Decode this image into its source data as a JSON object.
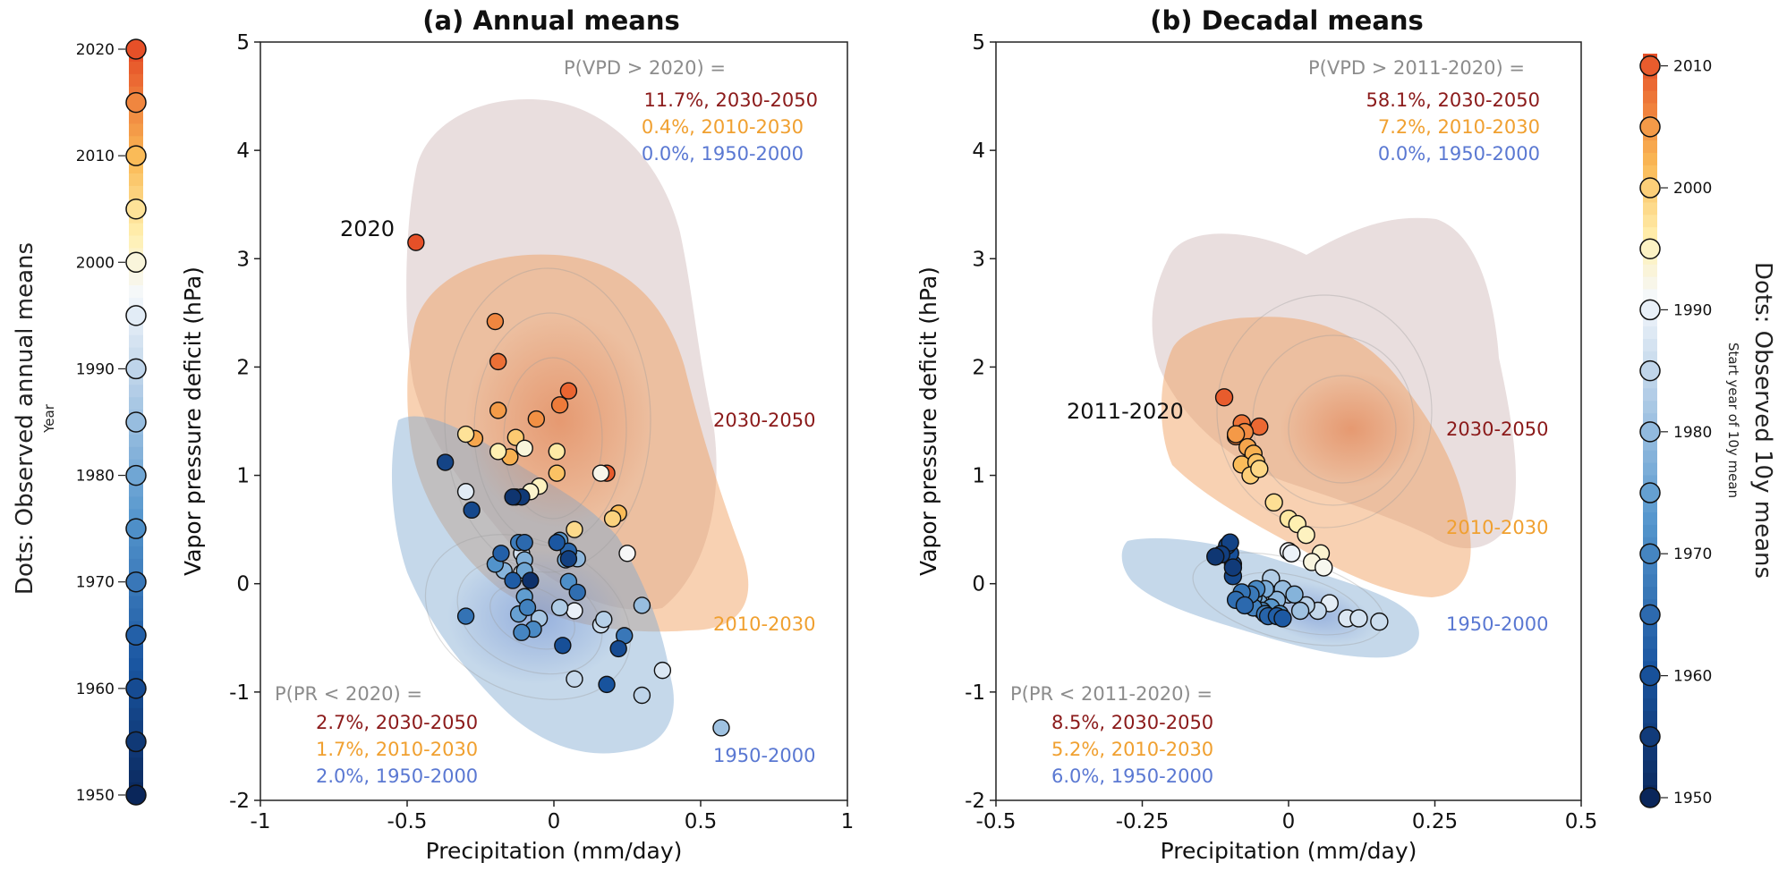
{
  "figure": {
    "left_colorbar": {
      "title": "Dots: Observed annual means",
      "subtitle": "Year",
      "ticks": [
        "1950",
        "1960",
        "1970",
        "1980",
        "1990",
        "2000",
        "2010",
        "2020"
      ]
    },
    "right_colorbar": {
      "title": "Dots: Observed 10y means",
      "subtitle": "Start year of 10y mean",
      "ticks": [
        "1950",
        "1960",
        "1970",
        "1980",
        "1990",
        "2000",
        "2010"
      ]
    }
  },
  "colors": {
    "period_2030_2050": "#8b1a1a",
    "period_2010_2030": "#f0a030",
    "period_1950_2000": "#5a78d2",
    "prob_header": "#8c8c8c",
    "kde_2030_2050": "#b89090",
    "kde_2010_2030": "#f2a860",
    "kde_1950_2000": "#7fa8d0"
  },
  "chart_data": [
    {
      "type": "scatter",
      "title": "(a) Annual means",
      "xlabel": "Precipitation (mm/day)",
      "ylabel": "Vapor pressure deficit (hPa)",
      "xlim": [
        -1,
        1
      ],
      "ylim": [
        -2,
        5
      ],
      "xticks": [
        "-1",
        "-0.5",
        "0",
        "0.5",
        "1"
      ],
      "yticks": [
        "-2",
        "-1",
        "0",
        "1",
        "2",
        "3",
        "4",
        "5"
      ],
      "highlight_label": "2020",
      "prob_vpd": {
        "header": "P(VPD > 2020) =",
        "lines": [
          "11.7%, 2030-2050",
          "0.4%, 2010-2030",
          "0.0%, 1950-2000"
        ]
      },
      "prob_pr": {
        "header": "P(PR < 2020) =",
        "lines": [
          "2.7%, 2030-2050",
          "1.7%, 2010-2030",
          "2.0%, 1950-2000"
        ]
      },
      "region_labels": [
        "2030-2050",
        "2010-2030",
        "1950-2000"
      ],
      "points": [
        {
          "x": -0.47,
          "y": 3.15,
          "year": 2020
        },
        {
          "x": 0.18,
          "y": 1.02,
          "year": 2019
        },
        {
          "x": 0.05,
          "y": 1.78,
          "year": 2018
        },
        {
          "x": -0.19,
          "y": 2.05,
          "year": 2017
        },
        {
          "x": 0.02,
          "y": 1.65,
          "year": 2016
        },
        {
          "x": -0.2,
          "y": 2.42,
          "year": 2015
        },
        {
          "x": -0.06,
          "y": 1.52,
          "year": 2014
        },
        {
          "x": -0.19,
          "y": 1.6,
          "year": 2013
        },
        {
          "x": -0.27,
          "y": 1.34,
          "year": 2012
        },
        {
          "x": -0.15,
          "y": 1.17,
          "year": 2011
        },
        {
          "x": 0.22,
          "y": 0.65,
          "year": 2010
        },
        {
          "x": 0.01,
          "y": 1.02,
          "year": 2009
        },
        {
          "x": -0.13,
          "y": 1.35,
          "year": 2008
        },
        {
          "x": 0.2,
          "y": 0.6,
          "year": 2007
        },
        {
          "x": 0.07,
          "y": 0.5,
          "year": 2006
        },
        {
          "x": -0.3,
          "y": 1.38,
          "year": 2005
        },
        {
          "x": 0.01,
          "y": 1.22,
          "year": 2004
        },
        {
          "x": -0.19,
          "y": 1.22,
          "year": 2003
        },
        {
          "x": -0.05,
          "y": 0.9,
          "year": 2002
        },
        {
          "x": -0.08,
          "y": 0.85,
          "year": 2001
        },
        {
          "x": -0.1,
          "y": 1.25,
          "year": 2000
        },
        {
          "x": 0.16,
          "y": 1.02,
          "year": 1999
        },
        {
          "x": 0.25,
          "y": 0.28,
          "year": 1998
        },
        {
          "x": -0.11,
          "y": 0.1,
          "year": 1997
        },
        {
          "x": 0.07,
          "y": -0.25,
          "year": 1996
        },
        {
          "x": -0.3,
          "y": 0.85,
          "year": 1995
        },
        {
          "x": 0.37,
          "y": -0.8,
          "year": 1994
        },
        {
          "x": -0.11,
          "y": 0.28,
          "year": 1993
        },
        {
          "x": 0.16,
          "y": -0.38,
          "year": 1992
        },
        {
          "x": 0.07,
          "y": -0.88,
          "year": 1991
        },
        {
          "x": 0.3,
          "y": -1.03,
          "year": 1990
        },
        {
          "x": 0.17,
          "y": -0.33,
          "year": 1989
        },
        {
          "x": 0.02,
          "y": -0.22,
          "year": 1988
        },
        {
          "x": -0.05,
          "y": -0.32,
          "year": 1987
        },
        {
          "x": 0.57,
          "y": -1.33,
          "year": 1986
        },
        {
          "x": 0.3,
          "y": -0.2,
          "year": 1985
        },
        {
          "x": 0.08,
          "y": 0.23,
          "year": 1984
        },
        {
          "x": -0.17,
          "y": 0.12,
          "year": 1983
        },
        {
          "x": -0.1,
          "y": 0.22,
          "year": 1982
        },
        {
          "x": 0.04,
          "y": 0.22,
          "year": 1981
        },
        {
          "x": -0.1,
          "y": 0.12,
          "year": 1980
        },
        {
          "x": -0.12,
          "y": -0.28,
          "year": 1979
        },
        {
          "x": -0.1,
          "y": -0.12,
          "year": 1978
        },
        {
          "x": 0.02,
          "y": 0.4,
          "year": 1977
        },
        {
          "x": -0.2,
          "y": 0.18,
          "year": 1976
        },
        {
          "x": 0.05,
          "y": 0.02,
          "year": 1975
        },
        {
          "x": -0.07,
          "y": -0.42,
          "year": 1974
        },
        {
          "x": -0.11,
          "y": -0.45,
          "year": 1973
        },
        {
          "x": -0.09,
          "y": -0.22,
          "year": 1972
        },
        {
          "x": -0.12,
          "y": 0.38,
          "year": 1971
        },
        {
          "x": 0.24,
          "y": -0.48,
          "year": 1970
        },
        {
          "x": -0.3,
          "y": -0.3,
          "year": 1969
        },
        {
          "x": 0.08,
          "y": -0.08,
          "year": 1968
        },
        {
          "x": -0.1,
          "y": 0.38,
          "year": 1967
        },
        {
          "x": 0.05,
          "y": 0.3,
          "year": 1966
        },
        {
          "x": -0.18,
          "y": 0.28,
          "year": 1965
        },
        {
          "x": -0.14,
          "y": 0.03,
          "year": 1964
        },
        {
          "x": 0.01,
          "y": 0.38,
          "year": 1963
        },
        {
          "x": 0.18,
          "y": -0.93,
          "year": 1962
        },
        {
          "x": 0.03,
          "y": -0.57,
          "year": 1961
        },
        {
          "x": 0.22,
          "y": -0.6,
          "year": 1960
        },
        {
          "x": -0.28,
          "y": 0.68,
          "year": 1959
        },
        {
          "x": -0.37,
          "y": 1.12,
          "year": 1958
        },
        {
          "x": 0.05,
          "y": 0.23,
          "year": 1957
        },
        {
          "x": -0.13,
          "y": 0.8,
          "year": 1956
        },
        {
          "x": -0.11,
          "y": 0.8,
          "year": 1955
        },
        {
          "x": -0.14,
          "y": 0.8,
          "year": 1954
        },
        {
          "x": -0.08,
          "y": 0.03,
          "year": 1953
        }
      ]
    },
    {
      "type": "scatter",
      "title": "(b) Decadal means",
      "xlabel": "Precipitation (mm/day)",
      "ylabel": "Vapor pressure deficit (hPa)",
      "xlim": [
        -0.5,
        0.5
      ],
      "ylim": [
        -2,
        5
      ],
      "xticks": [
        "-0.5",
        "-0.25",
        "0",
        "0.25",
        "0.5"
      ],
      "yticks": [
        "-2",
        "-1",
        "0",
        "1",
        "2",
        "3",
        "4",
        "5"
      ],
      "highlight_label": "2011-2020",
      "prob_vpd": {
        "header": "P(VPD > 2011-2020) =",
        "lines": [
          "58.1%, 2030-2050",
          "7.2%, 2010-2030",
          "0.0%, 1950-2000"
        ]
      },
      "prob_pr": {
        "header": "P(PR < 2011-2020) =",
        "lines": [
          "8.5%, 2030-2050",
          "5.2%, 2010-2030",
          "6.0%, 1950-2000"
        ]
      },
      "region_labels": [
        "2030-2050",
        "2010-2030",
        "1950-2000"
      ],
      "points": [
        {
          "x": -0.11,
          "y": 1.72,
          "year": 2011
        },
        {
          "x": -0.05,
          "y": 1.45,
          "year": 2010
        },
        {
          "x": -0.08,
          "y": 1.48,
          "year": 2009
        },
        {
          "x": -0.09,
          "y": 1.36,
          "year": 2008
        },
        {
          "x": -0.075,
          "y": 1.4,
          "year": 2007
        },
        {
          "x": -0.09,
          "y": 1.38,
          "year": 2006
        },
        {
          "x": -0.07,
          "y": 1.26,
          "year": 2005
        },
        {
          "x": -0.06,
          "y": 1.2,
          "year": 2004
        },
        {
          "x": -0.08,
          "y": 1.1,
          "year": 2003
        },
        {
          "x": -0.055,
          "y": 1.12,
          "year": 2002
        },
        {
          "x": -0.065,
          "y": 1.0,
          "year": 2001
        },
        {
          "x": -0.05,
          "y": 1.06,
          "year": 2000
        },
        {
          "x": -0.025,
          "y": 0.75,
          "year": 1999
        },
        {
          "x": 0.0,
          "y": 0.6,
          "year": 1998
        },
        {
          "x": 0.015,
          "y": 0.55,
          "year": 1997
        },
        {
          "x": 0.03,
          "y": 0.45,
          "year": 1996
        },
        {
          "x": 0.055,
          "y": 0.28,
          "year": 1995
        },
        {
          "x": 0.04,
          "y": 0.2,
          "year": 1994
        },
        {
          "x": 0.06,
          "y": 0.15,
          "year": 1993
        },
        {
          "x": 0.0,
          "y": 0.3,
          "year": 1992
        },
        {
          "x": 0.005,
          "y": 0.28,
          "year": 1991
        },
        {
          "x": 0.07,
          "y": -0.18,
          "year": 1990
        },
        {
          "x": 0.1,
          "y": -0.32,
          "year": 1989
        },
        {
          "x": 0.12,
          "y": -0.32,
          "year": 1988
        },
        {
          "x": 0.155,
          "y": -0.35,
          "year": 1987
        },
        {
          "x": 0.05,
          "y": -0.25,
          "year": 1986
        },
        {
          "x": 0.03,
          "y": -0.2,
          "year": 1985
        },
        {
          "x": -0.03,
          "y": 0.05,
          "year": 1984
        },
        {
          "x": 0.0,
          "y": -0.1,
          "year": 1983
        },
        {
          "x": 0.02,
          "y": -0.25,
          "year": 1982
        },
        {
          "x": -0.01,
          "y": -0.05,
          "year": 1981
        },
        {
          "x": -0.02,
          "y": -0.15,
          "year": 1980
        },
        {
          "x": 0.01,
          "y": -0.1,
          "year": 1979
        },
        {
          "x": -0.04,
          "y": -0.05,
          "year": 1978
        },
        {
          "x": -0.05,
          "y": -0.18,
          "year": 1977
        },
        {
          "x": -0.06,
          "y": -0.12,
          "year": 1976
        },
        {
          "x": -0.07,
          "y": -0.15,
          "year": 1975
        },
        {
          "x": -0.03,
          "y": -0.22,
          "year": 1974
        },
        {
          "x": -0.015,
          "y": -0.28,
          "year": 1973
        },
        {
          "x": -0.045,
          "y": -0.25,
          "year": 1972
        },
        {
          "x": -0.055,
          "y": -0.05,
          "year": 1971
        },
        {
          "x": -0.06,
          "y": -0.22,
          "year": 1970
        },
        {
          "x": -0.04,
          "y": -0.28,
          "year": 1969
        },
        {
          "x": -0.065,
          "y": -0.1,
          "year": 1968
        },
        {
          "x": -0.08,
          "y": -0.08,
          "year": 1967
        },
        {
          "x": -0.09,
          "y": -0.15,
          "year": 1966
        },
        {
          "x": -0.075,
          "y": -0.2,
          "year": 1965
        },
        {
          "x": -0.035,
          "y": -0.3,
          "year": 1964
        },
        {
          "x": -0.02,
          "y": -0.3,
          "year": 1963
        },
        {
          "x": -0.01,
          "y": -0.32,
          "year": 1962
        },
        {
          "x": -0.095,
          "y": 0.18,
          "year": 1961
        },
        {
          "x": -0.1,
          "y": 0.28,
          "year": 1960
        },
        {
          "x": -0.105,
          "y": 0.35,
          "year": 1959
        },
        {
          "x": -0.095,
          "y": 0.07,
          "year": 1958
        },
        {
          "x": -0.1,
          "y": 0.38,
          "year": 1957
        },
        {
          "x": -0.115,
          "y": 0.27,
          "year": 1956
        },
        {
          "x": -0.095,
          "y": 0.15,
          "year": 1955
        },
        {
          "x": -0.125,
          "y": 0.25,
          "year": 1954
        }
      ]
    }
  ]
}
